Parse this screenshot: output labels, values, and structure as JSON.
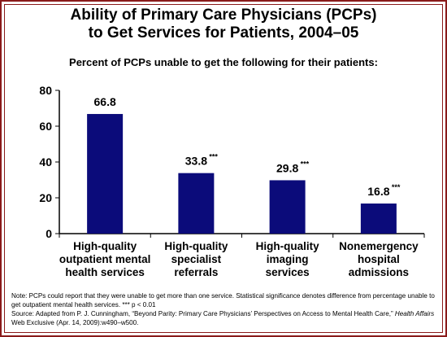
{
  "title_line1": "Ability of Primary Care Physicians (PCPs)",
  "title_line2": "to Get Services for Patients, 2004–05",
  "subtitle": "Percent of PCPs unable to get the following for their patients:",
  "colors": {
    "bar": "#0b0b7a",
    "border": "#8a1a1a"
  },
  "chart_data": {
    "type": "bar",
    "title": "Ability of Primary Care Physicians (PCPs) to Get Services for Patients, 2004–05",
    "ylabel": "",
    "ylim": [
      0,
      80
    ],
    "yticks": [
      "0",
      "20",
      "40",
      "60",
      "80"
    ],
    "grid": false,
    "categories": [
      [
        "High-quality",
        "outpatient mental",
        "health services"
      ],
      [
        "High-quality",
        "specialist",
        "referrals"
      ],
      [
        "High-quality",
        "imaging",
        "services"
      ],
      [
        "Nonemergency",
        "hospital",
        "admissions"
      ]
    ],
    "values": [
      66.8,
      33.8,
      29.8,
      16.8
    ],
    "labels": [
      "66.8",
      "33.8",
      "29.8",
      "16.8"
    ],
    "significance": [
      "",
      "***",
      "***",
      "***"
    ]
  },
  "footer": {
    "note": "Note: PCPs could report that they were unable to get more than one service. Statistical significance denotes difference from percentage unable to get outpatient mental health services. *** p < 0.01",
    "source_prefix": "Source: Adapted from P. J. Cunningham, “Beyond Parity: Primary Care Physicians’ Perspectives on Access to Mental Health Care,”",
    "source_journal": "Health Affairs",
    "source_suffix": "Web Exclusive (Apr. 14, 2009):w490–w500."
  }
}
